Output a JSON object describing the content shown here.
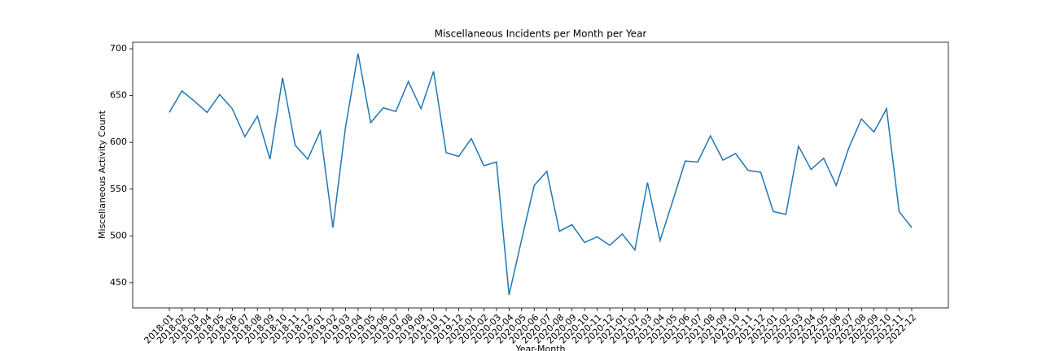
{
  "chart_data": {
    "type": "line",
    "title": "Miscellaneous Incidents per Month per Year",
    "x_label": "Year-Month",
    "y_label": "Miscellaneous Activity Count",
    "categories": [
      "2018-01",
      "2018-02",
      "2018-03",
      "2018-04",
      "2018-05",
      "2018-06",
      "2018-07",
      "2018-08",
      "2018-09",
      "2018-10",
      "2018-11",
      "2018-12",
      "2019-01",
      "2019-02",
      "2019-03",
      "2019-04",
      "2019-05",
      "2019-06",
      "2019-07",
      "2019-08",
      "2019-09",
      "2019-10",
      "2019-11",
      "2019-12",
      "2020-01",
      "2020-02",
      "2020-03",
      "2020-04",
      "2020-05",
      "2020-06",
      "2020-07",
      "2020-08",
      "2020-09",
      "2020-10",
      "2020-11",
      "2020-12",
      "2021-01",
      "2021-02",
      "2021-03",
      "2021-04",
      "2021-05",
      "2021-06",
      "2021-07",
      "2021-08",
      "2021-09",
      "2021-10",
      "2021-11",
      "2021-12",
      "2022-01",
      "2022-02",
      "2022-03",
      "2022-04",
      "2022-05",
      "2022-06",
      "2022-07",
      "2022-08",
      "2022-09",
      "2022-10",
      "2022-11",
      "2022-12"
    ],
    "values": [
      632,
      655,
      644,
      632,
      651,
      636,
      606,
      628,
      582,
      669,
      597,
      582,
      612,
      509,
      616,
      695,
      621,
      637,
      633,
      665,
      636,
      676,
      589,
      585,
      604,
      575,
      579,
      437,
      496,
      554,
      569,
      505,
      512,
      493,
      499,
      490,
      502,
      485,
      557,
      495,
      537,
      580,
      579,
      607,
      581,
      588,
      570,
      568,
      526,
      523,
      596,
      571,
      583,
      554,
      594,
      625,
      611,
      636,
      526,
      509
    ],
    "color": "#1f77b4",
    "ylim": [
      423,
      707
    ],
    "yticks": [
      450,
      500,
      550,
      600,
      650,
      700
    ]
  }
}
